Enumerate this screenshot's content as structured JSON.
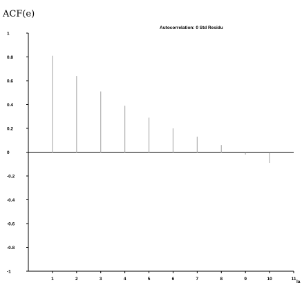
{
  "chart_data": {
    "type": "bar",
    "style": "spike",
    "title": "Autocorrelation: 0 Std Residu",
    "ylabel": "ACF(e)",
    "xlabel": "la",
    "x": [
      1,
      2,
      3,
      4,
      5,
      6,
      7,
      8,
      9,
      10
    ],
    "values": [
      0.81,
      0.64,
      0.51,
      0.39,
      0.29,
      0.2,
      0.13,
      0.06,
      -0.02,
      -0.09
    ],
    "ylim": [
      -1,
      1
    ],
    "xlim": [
      0,
      11
    ],
    "yticks": [
      {
        "v": 1,
        "label": "1"
      },
      {
        "v": 0.8,
        "label": "0.8"
      },
      {
        "v": 0.6,
        "label": "0.6"
      },
      {
        "v": 0.4,
        "label": "0.4"
      },
      {
        "v": 0.2,
        "label": "0.2"
      },
      {
        "v": 0,
        "label": "0"
      },
      {
        "v": -0.2,
        "label": "-0.2"
      },
      {
        "v": -0.4,
        "label": "-0.4"
      },
      {
        "v": -0.6,
        "label": "-0.6"
      },
      {
        "v": -0.8,
        "label": "-0.8"
      },
      {
        "v": -1,
        "label": "-1"
      }
    ],
    "xticks": [
      {
        "v": 1,
        "label": "1"
      },
      {
        "v": 2,
        "label": "2"
      },
      {
        "v": 3,
        "label": "3"
      },
      {
        "v": 4,
        "label": "4"
      },
      {
        "v": 5,
        "label": "5"
      },
      {
        "v": 6,
        "label": "6"
      },
      {
        "v": 7,
        "label": "7"
      },
      {
        "v": 8,
        "label": "8"
      },
      {
        "v": 9,
        "label": "9"
      },
      {
        "v": 10,
        "label": "10"
      },
      {
        "v": 11,
        "label": "11"
      }
    ],
    "grid": false,
    "colors": {
      "spike": "#b0b0b0",
      "axis": "#000000"
    }
  }
}
